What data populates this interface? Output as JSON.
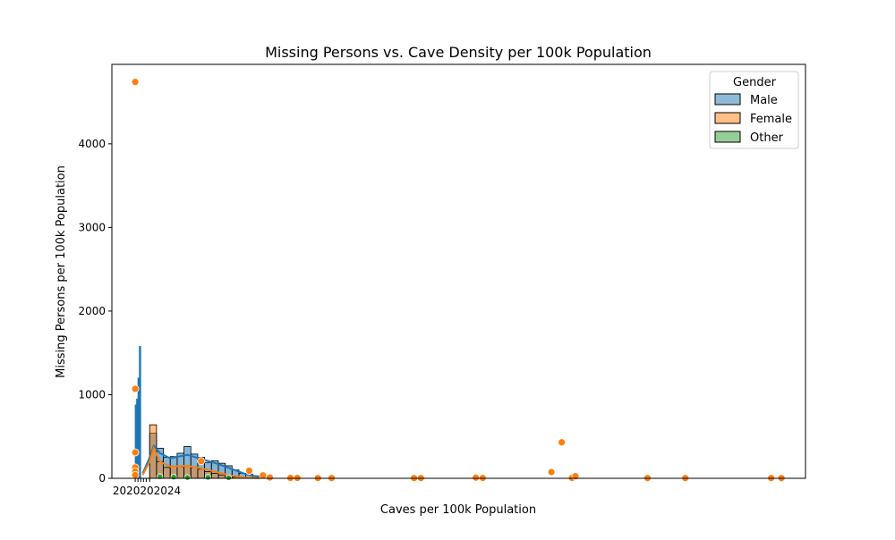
{
  "chart_data": {
    "type": "scatter",
    "title": "Missing Persons vs. Cave Density per 100k Population",
    "xlabel": "Caves per 100k Population",
    "ylabel": "Missing Persons per 100k Population",
    "ylim": [
      0,
      4950
    ],
    "yticks": [
      "0",
      "1000",
      "2000",
      "3000",
      "4000"
    ],
    "xtick_labels_overlapping": "2020202024",
    "legend": {
      "title": "Gender",
      "placement": "top-right",
      "entries": [
        {
          "label": "Male",
          "color": "#1f77b4"
        },
        {
          "label": "Female",
          "color": "#ff7f0e"
        },
        {
          "label": "Other",
          "color": "#2ca02c"
        }
      ]
    },
    "colors": {
      "male": "#1f77b4",
      "female": "#ff7f0e",
      "other": "#2ca02c"
    },
    "histogram_male": [
      {
        "x": 1.0,
        "count": 880
      },
      {
        "x": 1.2,
        "count": 950
      },
      {
        "x": 1.4,
        "count": 1200
      },
      {
        "x": 1.6,
        "count": 1580
      },
      {
        "x": 3.5,
        "count": 540
      },
      {
        "x": 4.5,
        "count": 360
      },
      {
        "x": 5.5,
        "count": 250
      },
      {
        "x": 6.5,
        "count": 260
      },
      {
        "x": 7.5,
        "count": 300
      },
      {
        "x": 8.5,
        "count": 380
      },
      {
        "x": 9.5,
        "count": 290
      },
      {
        "x": 10.5,
        "count": 250
      },
      {
        "x": 11.5,
        "count": 190
      },
      {
        "x": 12.5,
        "count": 210
      },
      {
        "x": 13.5,
        "count": 180
      },
      {
        "x": 14.5,
        "count": 150
      },
      {
        "x": 15.5,
        "count": 100
      },
      {
        "x": 16.5,
        "count": 60
      },
      {
        "x": 17.5,
        "count": 50
      },
      {
        "x": 18.5,
        "count": 30
      },
      {
        "x": 19.5,
        "count": 20
      },
      {
        "x": 20.5,
        "count": 10
      }
    ],
    "histogram_female": [
      {
        "x": 3.5,
        "count": 640
      },
      {
        "x": 4.5,
        "count": 200
      },
      {
        "x": 5.5,
        "count": 130
      },
      {
        "x": 6.5,
        "count": 140
      },
      {
        "x": 7.5,
        "count": 140
      },
      {
        "x": 8.5,
        "count": 150
      },
      {
        "x": 9.5,
        "count": 130
      },
      {
        "x": 10.5,
        "count": 110
      },
      {
        "x": 11.5,
        "count": 80
      },
      {
        "x": 12.5,
        "count": 60
      },
      {
        "x": 13.5,
        "count": 40
      },
      {
        "x": 14.5,
        "count": 25
      },
      {
        "x": 15.5,
        "count": 15
      }
    ],
    "kde_male": [
      [
        2.0,
        60
      ],
      [
        3.0,
        250
      ],
      [
        3.6,
        390
      ],
      [
        4.5,
        300
      ],
      [
        6,
        240
      ],
      [
        8.5,
        280
      ],
      [
        11,
        220
      ],
      [
        13,
        170
      ],
      [
        15,
        110
      ],
      [
        17,
        50
      ],
      [
        19,
        15
      ],
      [
        21,
        3
      ]
    ],
    "kde_female": [
      [
        2.0,
        40
      ],
      [
        3.0,
        200
      ],
      [
        3.6,
        360
      ],
      [
        4.5,
        200
      ],
      [
        6,
        140
      ],
      [
        8.5,
        150
      ],
      [
        11,
        110
      ],
      [
        13,
        70
      ],
      [
        15,
        30
      ],
      [
        17,
        8
      ],
      [
        19,
        1
      ]
    ],
    "scatter_female": [
      {
        "x": 0.9,
        "y": 4740
      },
      {
        "x": 0.9,
        "y": 1070
      },
      {
        "x": 0.9,
        "y": 310
      },
      {
        "x": 0.9,
        "y": 130
      },
      {
        "x": 0.9,
        "y": 80
      },
      {
        "x": 0.9,
        "y": 40
      },
      {
        "x": 10.5,
        "y": 205
      },
      {
        "x": 17.5,
        "y": 90
      },
      {
        "x": 19.5,
        "y": 35
      },
      {
        "x": 20.5,
        "y": 10
      },
      {
        "x": 23.5,
        "y": 5
      },
      {
        "x": 24.5,
        "y": 4
      },
      {
        "x": 27.5,
        "y": 3
      },
      {
        "x": 29.5,
        "y": 3
      },
      {
        "x": 41.5,
        "y": 3
      },
      {
        "x": 42.5,
        "y": 3
      },
      {
        "x": 50.5,
        "y": 8
      },
      {
        "x": 51.5,
        "y": 4
      },
      {
        "x": 61.5,
        "y": 75
      },
      {
        "x": 63.0,
        "y": 430
      },
      {
        "x": 64.5,
        "y": 5
      },
      {
        "x": 65.0,
        "y": 25
      },
      {
        "x": 75.5,
        "y": 3
      },
      {
        "x": 81.0,
        "y": 3
      },
      {
        "x": 93.5,
        "y": 3
      },
      {
        "x": 95.0,
        "y": 3
      }
    ],
    "scatter_other": [
      {
        "x": 4.5,
        "y": 20
      },
      {
        "x": 6.5,
        "y": 15
      },
      {
        "x": 8.5,
        "y": 10
      },
      {
        "x": 11.5,
        "y": 12
      },
      {
        "x": 14.5,
        "y": 8
      }
    ]
  }
}
